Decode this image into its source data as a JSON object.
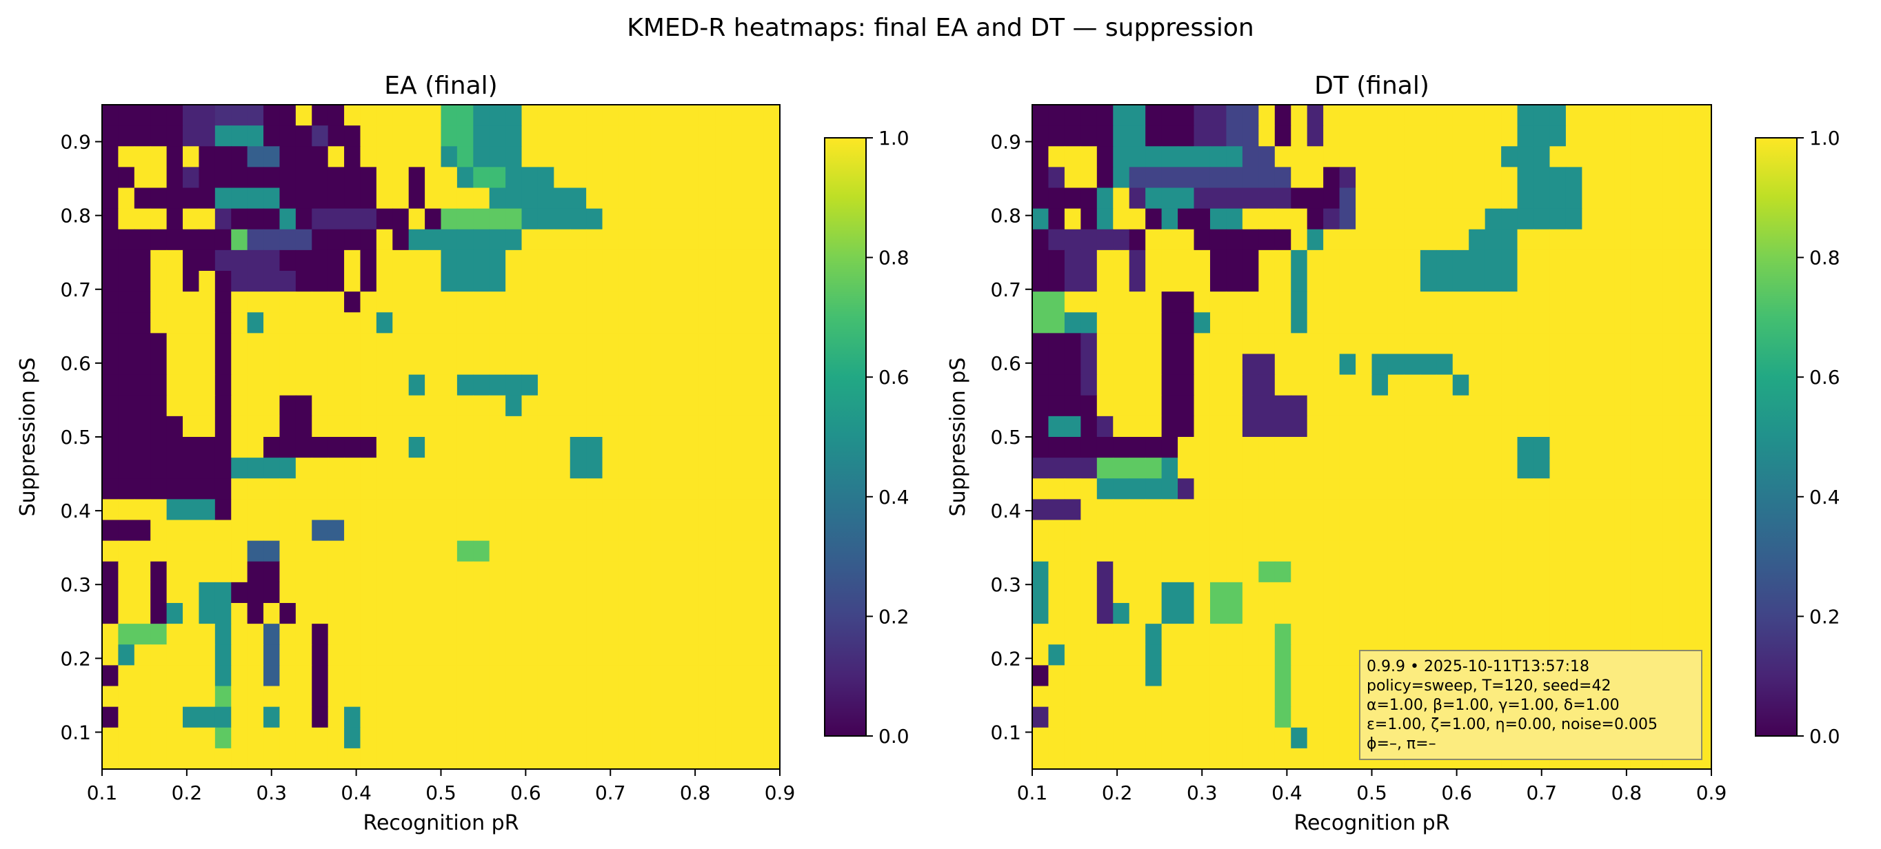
{
  "suptitle": "KMED-R heatmaps: final EA and DT — suppression",
  "colormap": "viridis",
  "chart_data": [
    {
      "type": "heatmap",
      "title": "EA (final)",
      "xlabel": "Recognition pR",
      "ylabel": "Suppression pS",
      "xlim": [
        0.1,
        0.9
      ],
      "ylim": [
        0.05,
        0.95
      ],
      "xticks": [
        "0.1",
        "0.2",
        "0.3",
        "0.4",
        "0.5",
        "0.6",
        "0.7",
        "0.8",
        "0.9"
      ],
      "yticks": [
        "0.1",
        "0.2",
        "0.3",
        "0.4",
        "0.5",
        "0.6",
        "0.7",
        "0.8",
        "0.9"
      ],
      "colorbar": {
        "ticks": [
          "0.0",
          "0.2",
          "0.4",
          "0.6",
          "0.8",
          "1.0"
        ],
        "range": [
          0,
          1
        ]
      },
      "grid_rows_top_to_bottom": [
        "0000011DDD00F00FFFFFF99AAAFFFFFFFFFFFFFFF",
        "0000011AAA000D00FFFFF99AAAFFFFFFFFFFFFFFF",
        "0FFF0F00033000F0FFFFFA9AAAFFFFFFFFFFFFFFF",
        "00FF0100000000000FF0FFA99AAAFFFFFFFFFFFFF",
        "0F00000AAAA000000FF0FFFFAAAAAAFFFFFFFFFFF",
        "0FFF0FF1000A0111100F0BBBBBAAAAAFFFFFFFFFFF",
        "00000000B22220000F0AAAAAAAFFFFFFFFFFFFFFF",
        "000FF0011110000F0FFFFAAAAFFFFFFFFFFFFFFFF",
        "000FF0F01111000F0FFFFAAAAFFFFFFFFFFFFFFFF",
        "000FFFF0FFFFFFF0FFFFFFFFFFFFFFFFFFFFFFFFF",
        "000FFFF0FAFFFFFFFAFFFFFFFFFFFFFFFFFFFFFFF",
        "0000FFF0FFFFFFFFFFFFFFFFFFFFFFFFFFFFFFFFF",
        "0000FFF0FFFFFFFFFFFFFFFFFFFFFFFFFFFFFFFFF",
        "0000FFF0FFFFFFFFFFFAFFAAAAAFFFFFFFFFFFFFFF",
        "0000FFF0FFF00FFFFFFFFFFFFAFFFFFFFFFFFFFFF",
        "00000FF0FFF00FFFFFFFFFFFFFFFFFFFFFFFFFFFF",
        "00000000FF0000000FFAFFFFFFFFFAAFFFFFFFFFF",
        "00000000AAAAFFFFFFFFFFFFFFFFFAAFFFFFFFFFF",
        "00000000FFFFFFFFFFFFFFFFFFFFFFFFFFFFFFFFF",
        "FFFFAAA0FFFFFFFFFFFFFFFFFFFFFFFFFFFFFFFFF",
        "000FFFFFFFFFF33FFFFFFFFFFFFFFFFFFFFFFFFFF",
        "FFFFFFFFF33FFFFFFFFFFFBBFFFFFFFFFFFFFFFFF",
        "0FF0FFFFF00FFFFFFFFFFFFFFFFFFFFFFFFFFFFFF",
        "0FF0FFAA000FFFFFFFFFFFFFFFFFFFFFFFFFFFFFF",
        "0FF0AFAAF0F0FFFFFFFFFFFFFFFFFFFFFFFFFFFFF",
        "FBBBFFFAFF3FF0FFFFFFFFFFFFFFFFFFFFFFFFFFF",
        "FAFFFFFAFF3FF0FFFFFFFFFFFFFFFFFFFFFFFFFFF",
        "0FFFFFFAFF3FF0FFFFFFFFFFFFFFFFFFFFFFFFFFF",
        "FFFFFFFBFFFFF0FFFFFFFFFFFFFFFFFFFFFFFFFFF",
        "0FFFFAAAFFAFF0FAFFFFFFFFFFFFFFFFFFFFFFFFF",
        "FFFFFFFBFFFFFFFAFFFFFFFFFFFFFFFFFFFFFFFFF",
        "FFFFFFFFFFFFFFFFFFFFFFFFFFFFFFFFFFFFFFFFF"
      ]
    },
    {
      "type": "heatmap",
      "title": "DT (final)",
      "xlabel": "Recognition pR",
      "ylabel": "Suppression pS",
      "xlim": [
        0.1,
        0.9
      ],
      "ylim": [
        0.05,
        0.95
      ],
      "xticks": [
        "0.1",
        "0.2",
        "0.3",
        "0.4",
        "0.5",
        "0.6",
        "0.7",
        "0.8",
        "0.9"
      ],
      "yticks": [
        "0.1",
        "0.2",
        "0.3",
        "0.4",
        "0.5",
        "0.6",
        "0.7",
        "0.8",
        "0.9"
      ],
      "colorbar": {
        "ticks": [
          "0.0",
          "0.2",
          "0.4",
          "0.6",
          "0.8",
          "1.0"
        ],
        "range": [
          0,
          1
        ]
      },
      "annotation_lines": [
        "0.9.9  •  2025-10-11T13:57:18",
        "policy=sweep, T=120, seed=42",
        "α=1.00, β=1.00, γ=1.00, δ=1.00",
        "ε=1.00, ζ=1.00, η=0.00, noise=0.005",
        "ϕ=–, π=–"
      ],
      "grid_rows_top_to_bottom": [
        "00000AA0001122F0F1FFFFFFFFFFFFAAAFFFFFFFFF",
        "00000AA0001122F0F1FFFFFFFFFFFFAAAFFFFFFFFF",
        "0FFF0AAAAAAAA22FFFFFFFFFFFFFFAAAFFFFFFFFF",
        "01FF0A2222222222FF01FFFFFFFFFFAAAAFFFFFFFF",
        "0000AF1AAA1111110002FFFFFFFFFFAAAAFFFFFFFF",
        "A0F0AFF0A00AAFFFF012FFFFFFFFAAAAAAFFFFFFFF",
        "0111110FFF000000FAFFFFFFFFFAAAFFFFFFFFFFFF",
        "0011FF1FFFF000FFAFFFFFFFAAAAAAFFFFFFFFFFFF",
        "0011FF1FFFF000FFAFFFFFFFAAAAAAFFFFFFFFFFFF",
        "BBFFFFFF00FFFFFFAFFFFFFFFFFFFFFFFFFFFFFFFF",
        "BBAAFFFF00AFFFFFAFFFFFFFFFFFFFFFFFFFFFFFFF",
        "0001FFFF00FFFFFFFFFFFFFFFFFFFFFFFFFFFFFFFF",
        "0001FFFF00FFF11FFFFAFAAAAAFFFFFFFFFFFFFFFF",
        "0001FFFF00FFF11FFFFFFAFFFFAFFFFFFFFFFFFFFF",
        "0000FFFF00FFF1111FFFFFFFFFFFFFFFFFFFFFFFFF",
        "0AA01FFF00FFF1111FFFFFFFFFFFFFFFFFFFFFFFFF",
        "000000000FFFFFFFFFFFFFFFFFFFFFAAFFFFFFFFFF",
        "1111BBBBAFFFFFFFFFFFFFFFFFFFFFAAFFFFFFFFFF",
        "FFFFAAAAA1FFFFFFFFFFFFFFFFFFFFFFFFFFFFFFFF",
        "111FFFFFFFFFFFFFFFFFFFFFFFFFFFFFFFFFFFFFFF",
        "FFFFFFFFFFFFFFFFFFFFFFFFFFFFFFFFFFFFFFFFFF",
        "FFFFFFFFFFFFFFFFFFFFFFFFFFFFFFFFFFFFFFFFFF",
        "AFFF1FFFFFFFFFBBFFFFFFFFFFFFFFFFFFFFFFFFFF",
        "AFFF1FFFAAFBBFFFFFFFFFFFFFFFFFFFFFFFFFFFFF",
        "AFFF1AFFAAFBBFFFFFFFFFFFFFFFFFFFFFFFFFFFFF",
        "FFFFFFFAFFFFFFFBFFFFFFFFFFFFFFFFFFFFFFFFFF",
        "FAFFFFFAFFFFFFFBFFFFFFFFFFFFFFFFFFFFFFFFFF",
        "0FFFFFFAFFFFFFFBFFFFFFFFFFFFFFFFFFFFFFFFFF",
        "FFFFFFFFFFFFFFFBFFFFFFFFFFFFFFFFFFFFFFFFFF",
        "1FFFFFFFFFFFFFFBFFFFFFFFFFFFFFFFFFFFFFFFFF",
        "FFFFFFFFFFFFFFFFAFFFFFFFFFFFFFFFFFFFFFFFFF",
        "FFFFFFFFFFFFFFFFFFFFFFFFFFFFFFFFFFFFFFFFFF"
      ]
    }
  ]
}
